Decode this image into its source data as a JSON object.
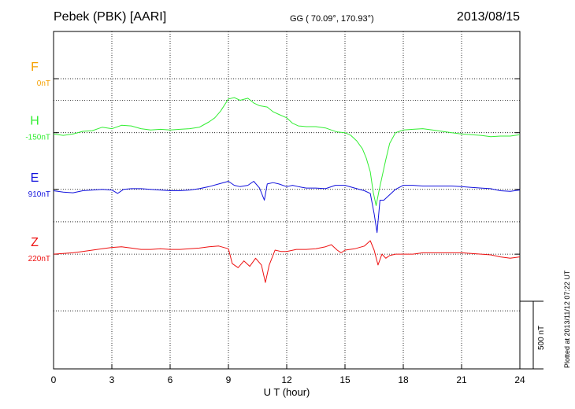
{
  "header": {
    "station": "Pebek (PBK)  [AARI]",
    "coords": "GG ( 70.09°, 170.93°)",
    "date": "2013/08/15"
  },
  "footer": {
    "plotted": "Plotted at 2013/11/12 07:22 UT",
    "scale_label": "500 nT"
  },
  "chart_data": {
    "type": "line",
    "xlabel": "U T (hour)",
    "xlim": [
      0,
      24
    ],
    "xticks": [
      0,
      3,
      6,
      9,
      12,
      15,
      18,
      21,
      24
    ],
    "ylim_nT": [
      -2150,
      350
    ],
    "grid": true,
    "series": [
      {
        "name": "F",
        "offset_label": "0nT",
        "color": "#f5a000",
        "baseline": 0,
        "x": [],
        "y": []
      },
      {
        "name": "H",
        "offset_label": "-150nT",
        "color": "#33ee33",
        "baseline": -400,
        "x": [
          0,
          0.5,
          1,
          1.5,
          2,
          2.5,
          3,
          3.5,
          4,
          4.5,
          5,
          5.5,
          6,
          6.5,
          7,
          7.5,
          8,
          8.3,
          8.6,
          9,
          9.3,
          9.6,
          10,
          10.3,
          10.6,
          11,
          11.3,
          11.6,
          12,
          12.3,
          12.6,
          13,
          13.5,
          14,
          14.3,
          14.6,
          15,
          15.3,
          15.6,
          15.9,
          16.1,
          16.3,
          16.45,
          16.6,
          16.75,
          16.9,
          17.1,
          17.3,
          17.6,
          18,
          18.5,
          19,
          19.5,
          20,
          20.5,
          21,
          21.5,
          22,
          22.5,
          23,
          23.5,
          24
        ],
        "y": [
          -410,
          -420,
          -410,
          -390,
          -385,
          -360,
          -370,
          -345,
          -350,
          -370,
          -380,
          -375,
          -380,
          -375,
          -370,
          -360,
          -320,
          -290,
          -240,
          -150,
          -140,
          -160,
          -145,
          -180,
          -200,
          -210,
          -245,
          -265,
          -290,
          -330,
          -350,
          -355,
          -355,
          -365,
          -380,
          -395,
          -400,
          -420,
          -460,
          -520,
          -590,
          -690,
          -840,
          -940,
          -830,
          -730,
          -600,
          -480,
          -400,
          -380,
          -375,
          -370,
          -380,
          -390,
          -400,
          -410,
          -415,
          -420,
          -430,
          -425,
          -425,
          -415
        ]
      },
      {
        "name": "E",
        "offset_label": "910nT",
        "color": "#1111dd",
        "baseline": -820,
        "x": [
          0,
          0.5,
          1,
          1.5,
          2,
          2.5,
          3,
          3.3,
          3.6,
          4,
          4.5,
          5,
          5.5,
          6,
          6.5,
          7,
          7.5,
          8,
          8.5,
          9,
          9.3,
          9.6,
          10,
          10.3,
          10.6,
          10.85,
          11,
          11.3,
          11.6,
          12,
          12.3,
          12.6,
          13,
          13.5,
          14,
          14.5,
          15,
          15.5,
          16,
          16.3,
          16.5,
          16.65,
          16.8,
          17,
          17.3,
          17.6,
          18,
          18.5,
          19,
          19.5,
          20,
          20.5,
          21,
          21.5,
          22,
          22.5,
          23,
          23.5,
          24
        ],
        "y": [
          -830,
          -840,
          -845,
          -830,
          -825,
          -820,
          -825,
          -850,
          -820,
          -815,
          -815,
          -820,
          -825,
          -830,
          -830,
          -825,
          -815,
          -800,
          -780,
          -760,
          -790,
          -800,
          -790,
          -760,
          -810,
          -900,
          -780,
          -770,
          -780,
          -800,
          -790,
          -800,
          -810,
          -810,
          -815,
          -790,
          -790,
          -810,
          -830,
          -850,
          -1000,
          -1140,
          -900,
          -900,
          -860,
          -820,
          -790,
          -790,
          -795,
          -795,
          -795,
          -795,
          -800,
          -805,
          -810,
          -815,
          -830,
          -835,
          -825
        ]
      },
      {
        "name": "Z",
        "offset_label": "220nT",
        "color": "#ee1111",
        "baseline": -1300,
        "x": [
          0,
          0.5,
          1,
          1.5,
          2,
          2.5,
          3,
          3.5,
          4,
          4.5,
          5,
          5.5,
          6,
          6.5,
          7,
          7.5,
          8,
          8.5,
          9,
          9.2,
          9.5,
          9.8,
          10.1,
          10.4,
          10.7,
          10.9,
          11.1,
          11.4,
          11.7,
          12,
          12.5,
          13,
          13.5,
          14,
          14.3,
          14.6,
          14.8,
          15,
          15.5,
          16,
          16.3,
          16.5,
          16.7,
          16.9,
          17.1,
          17.3,
          17.6,
          18,
          18.5,
          19,
          19.5,
          20,
          20.5,
          21,
          21.5,
          22,
          22.5,
          23,
          23.5,
          24
        ],
        "y": [
          -1300,
          -1295,
          -1290,
          -1280,
          -1270,
          -1260,
          -1250,
          -1245,
          -1255,
          -1265,
          -1265,
          -1260,
          -1265,
          -1265,
          -1260,
          -1255,
          -1245,
          -1240,
          -1260,
          -1370,
          -1400,
          -1350,
          -1390,
          -1330,
          -1380,
          -1510,
          -1380,
          -1270,
          -1280,
          -1280,
          -1265,
          -1265,
          -1260,
          -1245,
          -1230,
          -1270,
          -1290,
          -1270,
          -1260,
          -1240,
          -1200,
          -1270,
          -1380,
          -1300,
          -1330,
          -1310,
          -1300,
          -1300,
          -1300,
          -1290,
          -1290,
          -1290,
          -1290,
          -1290,
          -1295,
          -1300,
          -1305,
          -1320,
          -1330,
          -1320
        ]
      }
    ]
  }
}
